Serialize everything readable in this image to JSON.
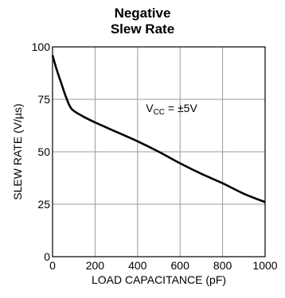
{
  "chart_data": {
    "type": "line",
    "title_lines": [
      "Negative",
      "Slew Rate"
    ],
    "xlabel": "LOAD CAPACITANCE (pF)",
    "ylabel": "SLEW RATE (V/µs)",
    "xlim": [
      0,
      1000
    ],
    "ylim": [
      0,
      100
    ],
    "x_ticks": [
      {
        "value": 0,
        "label": "0"
      },
      {
        "value": 200,
        "label": "200"
      },
      {
        "value": 400,
        "label": "400"
      },
      {
        "value": 600,
        "label": "600"
      },
      {
        "value": 800,
        "label": "800"
      },
      {
        "value": 1000,
        "label": "1000"
      }
    ],
    "y_ticks": [
      {
        "value": 0,
        "label": "0"
      },
      {
        "value": 25,
        "label": "25"
      },
      {
        "value": 50,
        "label": "50"
      },
      {
        "value": 75,
        "label": "75"
      },
      {
        "value": 100,
        "label": "100"
      }
    ],
    "grid": true,
    "annotation": {
      "main": "V",
      "sub": "CC",
      "rest": " = ±5V",
      "x": 560,
      "y": 69
    },
    "series": [
      {
        "color": "#000000",
        "x": [
          0,
          20,
          40,
          60,
          80,
          100,
          150,
          200,
          300,
          400,
          500,
          600,
          700,
          800,
          900,
          1000
        ],
        "y": [
          96,
          89,
          83,
          77,
          72,
          69.5,
          66.5,
          64,
          59.5,
          55,
          50,
          44.5,
          39.5,
          35,
          30,
          26
        ]
      }
    ]
  }
}
